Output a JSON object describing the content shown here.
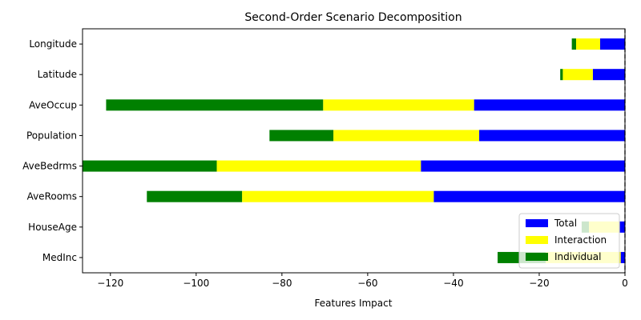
{
  "chart_data": {
    "type": "bar",
    "orientation": "horizontal",
    "stacking": "stacked",
    "title": "Second-Order Scenario Decomposition",
    "xlabel": "Features Impact",
    "ylabel": "",
    "xlim": [
      -126.5,
      0
    ],
    "xticks": [
      -120,
      -100,
      -80,
      -60,
      -40,
      -20,
      0
    ],
    "xtick_labels": [
      "−120",
      "−100",
      "−80",
      "−60",
      "−40",
      "−20",
      "0"
    ],
    "grid": false,
    "zero_line": "dashed",
    "legend_position": "lower-right",
    "categories": [
      "MedInc",
      "HouseAge",
      "AveRooms",
      "AveBedrms",
      "Population",
      "AveOccup",
      "Latitude",
      "Longitude"
    ],
    "series": [
      {
        "name": "Total",
        "color": "#0000ff",
        "values": [
          -1.0,
          -1.2,
          -44.6,
          -47.6,
          -34.0,
          -35.2,
          -7.5,
          -5.8
        ]
      },
      {
        "name": "Interaction",
        "color": "#ffff00",
        "values": [
          -17.5,
          -7.2,
          -44.7,
          -47.6,
          -34.0,
          -35.2,
          -7.0,
          -5.6
        ]
      },
      {
        "name": "Individual",
        "color": "#008000",
        "values": [
          -11.2,
          -1.7,
          -22.2,
          -31.4,
          -14.9,
          -50.6,
          -0.6,
          -1.0
        ]
      }
    ]
  }
}
